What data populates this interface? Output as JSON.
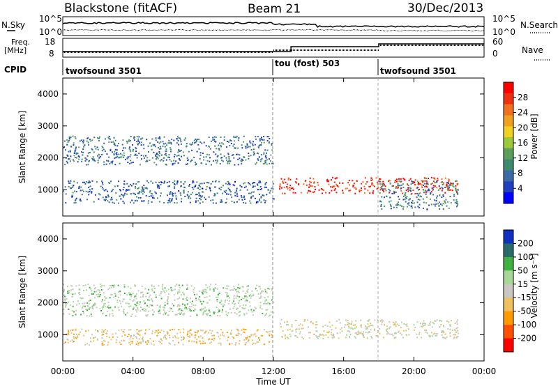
{
  "header": {
    "title": "Blackstone (fitACF)",
    "beam": "Beam 21",
    "date": "30/Dec/2013"
  },
  "noise_panel": {
    "left_label": "N.Sky",
    "right_label": "N.Search",
    "left_ticks": [
      "10^5",
      "10^0"
    ],
    "right_ticks": [
      "10^5",
      "10^0"
    ]
  },
  "freq_panel": {
    "left_label_1": "Freq.",
    "left_label_2": "[MHz]",
    "right_label": "Nave",
    "left_ticks": [
      "18",
      "8"
    ],
    "right_ticks": [
      "60",
      "0"
    ]
  },
  "cpid": {
    "label": "CPID",
    "segments": [
      "twofsound 3501",
      "tou (fost) 503",
      "twofsound 3501"
    ]
  },
  "axes": {
    "ylabel": "Slant Range [km]",
    "xlabel": "Time UT",
    "y_ticks": [
      "4000",
      "3000",
      "2000",
      "1000"
    ],
    "x_ticks": [
      "00:00",
      "04:00",
      "08:00",
      "12:00",
      "16:00",
      "20:00",
      "00:00"
    ]
  },
  "colorbars": {
    "power": {
      "label": "Power [dB]",
      "ticks": [
        "28",
        "24",
        "20",
        "16",
        "12",
        "8",
        "4"
      ]
    },
    "velocity": {
      "label": "Velocity [m s⁻¹]",
      "ticks": [
        "200",
        "100",
        "50",
        "15",
        "-15",
        "-50",
        "-100",
        "-200"
      ]
    }
  },
  "chart_data": [
    {
      "type": "heatmap",
      "title": "Power",
      "x": "time (hours UT 0-24)",
      "ylabel": "Slant Range [km]",
      "ylim": [
        180,
        4500
      ],
      "colorscale_range": [
        0,
        30
      ],
      "features": [
        {
          "hours": [
            0,
            12
          ],
          "range_km": [
            600,
            1300
          ],
          "power_db": 6
        },
        {
          "hours": [
            0,
            12
          ],
          "range_km": [
            1800,
            2700
          ],
          "power_db": 7
        },
        {
          "hours": [
            12.3,
            22.5
          ],
          "range_km": [
            900,
            1400
          ],
          "power_db": 28
        },
        {
          "hours": [
            18,
            22.5
          ],
          "range_km": [
            400,
            1300
          ],
          "power_db": 8
        }
      ]
    },
    {
      "type": "heatmap",
      "title": "Velocity",
      "x": "time (hours UT 0-24)",
      "ylabel": "Slant Range [km]",
      "ylim": [
        180,
        4500
      ],
      "colorscale_range": [
        -250,
        250
      ],
      "features": [
        {
          "hours": [
            0,
            12
          ],
          "range_km": [
            700,
            1200
          ],
          "velocity_ms": -50
        },
        {
          "hours": [
            0,
            12
          ],
          "range_km": [
            1600,
            2600
          ],
          "velocity_ms": 50
        },
        {
          "hours": [
            12.3,
            22.5
          ],
          "range_km": [
            900,
            1500
          ],
          "velocity_ms": 0
        }
      ]
    }
  ]
}
